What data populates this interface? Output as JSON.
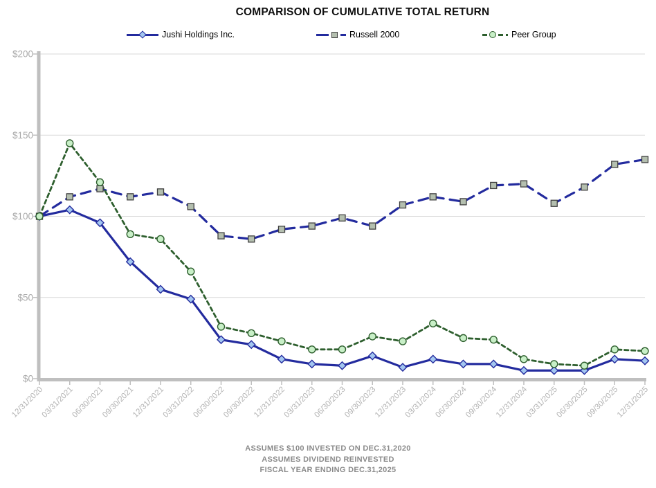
{
  "title": "COMPARISON OF CUMULATIVE TOTAL RETURN",
  "legend": [
    {
      "label": "Jushi Holdings Inc.",
      "marker": "diamond",
      "line": "solid"
    },
    {
      "label": "Russell 2000",
      "marker": "square",
      "line": "long-dash"
    },
    {
      "label": "Peer Group",
      "marker": "circle",
      "line": "short-dash"
    }
  ],
  "footnotes": [
    "ASSUMES $100 INVESTED ON DEC.31,2020",
    "ASSUMES DIVIDEND REINVESTED",
    "FISCAL YEAR ENDING DEC.31,2025"
  ],
  "colors": {
    "navy": "#232B9E",
    "green": "#2E5F2E",
    "diamond_fill": "#A3C6F0",
    "square_fill": "#B4BFAF",
    "square_stroke": "#3F3F3F",
    "circle_fill": "#C8EFC7",
    "axis": "#BFBFBF",
    "grid": "#D9D9D9",
    "tick_label": "#A9A9A9",
    "footnote": "#8A8A8A"
  },
  "chart_data": {
    "type": "line",
    "title": "COMPARISON OF CUMULATIVE TOTAL RETURN",
    "xlabel": "",
    "ylabel": "",
    "ylabel_prefix": "$",
    "ylim": [
      0,
      200
    ],
    "yticks": [
      0,
      50,
      100,
      150,
      200
    ],
    "grid": true,
    "legend_position": "top",
    "categories": [
      "12/31/2020",
      "03/31/2021",
      "06/30/2021",
      "09/30/2021",
      "12/31/2021",
      "03/31/2022",
      "06/30/2022",
      "09/30/2022",
      "12/31/2022",
      "03/31/2023",
      "06/30/2023",
      "09/30/2023",
      "12/31/2023",
      "03/31/2024",
      "06/30/2024",
      "09/30/2024",
      "12/31/2024",
      "03/31/2025",
      "06/30/2025",
      "09/30/2025",
      "12/31/2025"
    ],
    "series": [
      {
        "name": "Jushi Holdings Inc.",
        "marker": "diamond",
        "dash": "solid",
        "color": "#232B9E",
        "marker_fill": "#A3C6F0",
        "values": [
          100,
          104,
          96,
          72,
          55,
          49,
          24,
          21,
          12,
          9,
          8,
          14,
          7,
          12,
          9,
          9,
          5,
          5,
          5,
          12,
          11
        ]
      },
      {
        "name": "Russell 2000",
        "marker": "square",
        "dash": "long",
        "color": "#232B9E",
        "marker_fill": "#B4BFAF",
        "marker_stroke": "#3F3F3F",
        "values": [
          100,
          112,
          117,
          112,
          115,
          106,
          88,
          86,
          92,
          94,
          99,
          94,
          107,
          112,
          109,
          119,
          120,
          108,
          118,
          132,
          135
        ]
      },
      {
        "name": "Peer Group",
        "marker": "circle",
        "dash": "short",
        "color": "#2E5F2E",
        "marker_fill": "#C8EFC7",
        "values": [
          100,
          145,
          121,
          89,
          86,
          66,
          32,
          28,
          23,
          18,
          18,
          26,
          23,
          34,
          25,
          24,
          12,
          9,
          8,
          18,
          17
        ]
      }
    ]
  }
}
